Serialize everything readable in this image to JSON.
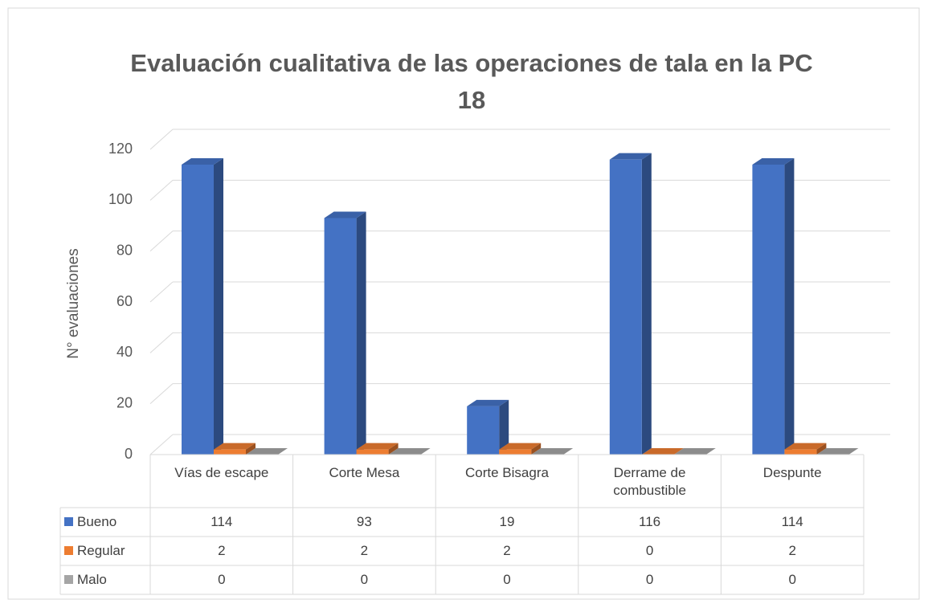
{
  "chart_data": {
    "type": "bar3d",
    "title": "Evaluación cualitativa de las operaciones de tala en la PC 18",
    "y_label": "N° evaluaciones",
    "categories": [
      "Vías de escape",
      "Corte Mesa",
      "Corte Bisagra",
      "Derrame de combustible",
      "Despunte"
    ],
    "series": [
      {
        "name": "Bueno",
        "color": "#4472c4",
        "values": [
          114,
          93,
          19,
          116,
          114
        ]
      },
      {
        "name": "Regular",
        "color": "#ed7d31",
        "values": [
          2,
          2,
          2,
          0,
          2
        ]
      },
      {
        "name": "Malo",
        "color": "#a5a5a5",
        "values": [
          0,
          0,
          0,
          0,
          0
        ]
      }
    ],
    "ylim": [
      0,
      120
    ],
    "yticks": [
      0,
      20,
      40,
      60,
      80,
      100,
      120
    ],
    "grid": true,
    "data_table": true
  }
}
